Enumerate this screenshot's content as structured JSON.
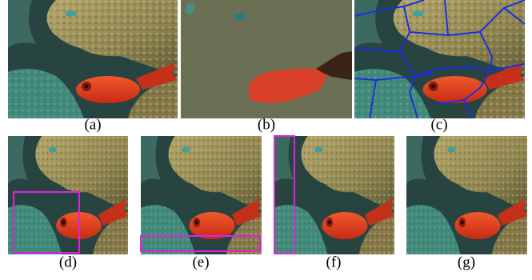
{
  "captions": [
    "(a)",
    "(b)",
    "(c)",
    "(d)",
    "(e)",
    "(f)",
    "(g)"
  ]
}
